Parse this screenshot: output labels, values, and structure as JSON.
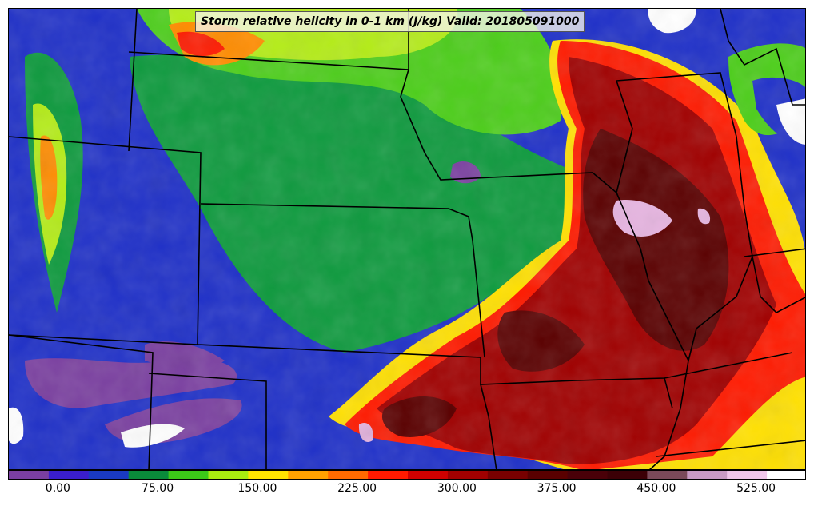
{
  "title": "Storm relative helicity in 0-1 km (J/kg) Valid: 201805091000",
  "colorbar": {
    "colors": [
      "#7a3fa0",
      "#3a1ecc",
      "#1a3ac0",
      "#0a8a3a",
      "#3cc818",
      "#a8ec10",
      "#ffe400",
      "#ffa000",
      "#ff6a00",
      "#ff1a00",
      "#d00000",
      "#a00000",
      "#780000",
      "#5a0000",
      "#4a0008",
      "#3c0006",
      "#7a4a5a",
      "#c89ac4",
      "#f0c6ea",
      "#ffffff"
    ],
    "tick_labels": [
      "0.00",
      "75.00",
      "150.00",
      "225.00",
      "300.00",
      "375.00",
      "450.00",
      "525.00"
    ],
    "tick_values": [
      0,
      75,
      150,
      225,
      300,
      375,
      450,
      525
    ],
    "range": [
      -37.5,
      562.5
    ]
  },
  "palette": {
    "purple": "#7a3fa0",
    "blue": "#1f30c8",
    "green": "#0e9a3e",
    "lime": "#4cce1a",
    "yellow_green": "#b4ec18",
    "yellow": "#ffe000",
    "orange": "#ff8c00",
    "red": "#ff1a00",
    "dark_red": "#a00000",
    "maroon": "#5a0000",
    "pink": "#e6b4e0",
    "white": "#ffffff"
  }
}
